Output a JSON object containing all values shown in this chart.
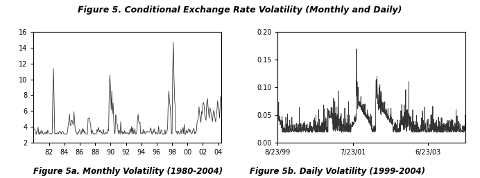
{
  "title": "Figure 5. Conditional Exchange Rate Volatility (Monthly and Daily)",
  "title_fontsize": 9,
  "title_style": "bold",
  "left_caption": "Figure 5a. Monthly Volatility (1980-2004)",
  "right_caption": "Figure 5b. Daily Volatility (1999-2004)",
  "caption_fontsize": 8.5,
  "left": {
    "yticks": [
      2,
      4,
      6,
      8,
      10,
      12,
      14,
      16
    ],
    "ylim": [
      2,
      16
    ],
    "xticks_labels": [
      "82",
      "84",
      "86",
      "88",
      "90",
      "92",
      "94",
      "96",
      "98",
      "00",
      "02",
      "04"
    ],
    "xticks_pos": [
      24,
      48,
      72,
      96,
      120,
      144,
      168,
      192,
      216,
      240,
      264,
      288
    ],
    "n_points": 294
  },
  "right": {
    "yticks": [
      0.0,
      0.05,
      0.1,
      0.15,
      0.2
    ],
    "ylim": [
      0.0,
      0.2
    ],
    "xticks_labels": [
      "8/23/99",
      "7/23/01",
      "6/23/03"
    ],
    "n_points": 1305
  },
  "line_color": "#333333",
  "line_width": 0.6,
  "bg_color": "#ffffff",
  "axes_color": "#000000"
}
